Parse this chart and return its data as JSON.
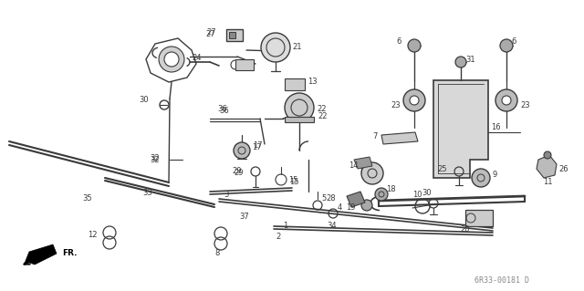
{
  "bg_color": "#ffffff",
  "lc": "#3a3a3a",
  "tc": "#3a3a3a",
  "watermark_text": "6R33-00181 D",
  "watermark_color": "#888888",
  "figsize": [
    6.4,
    3.19
  ],
  "dpi": 100
}
